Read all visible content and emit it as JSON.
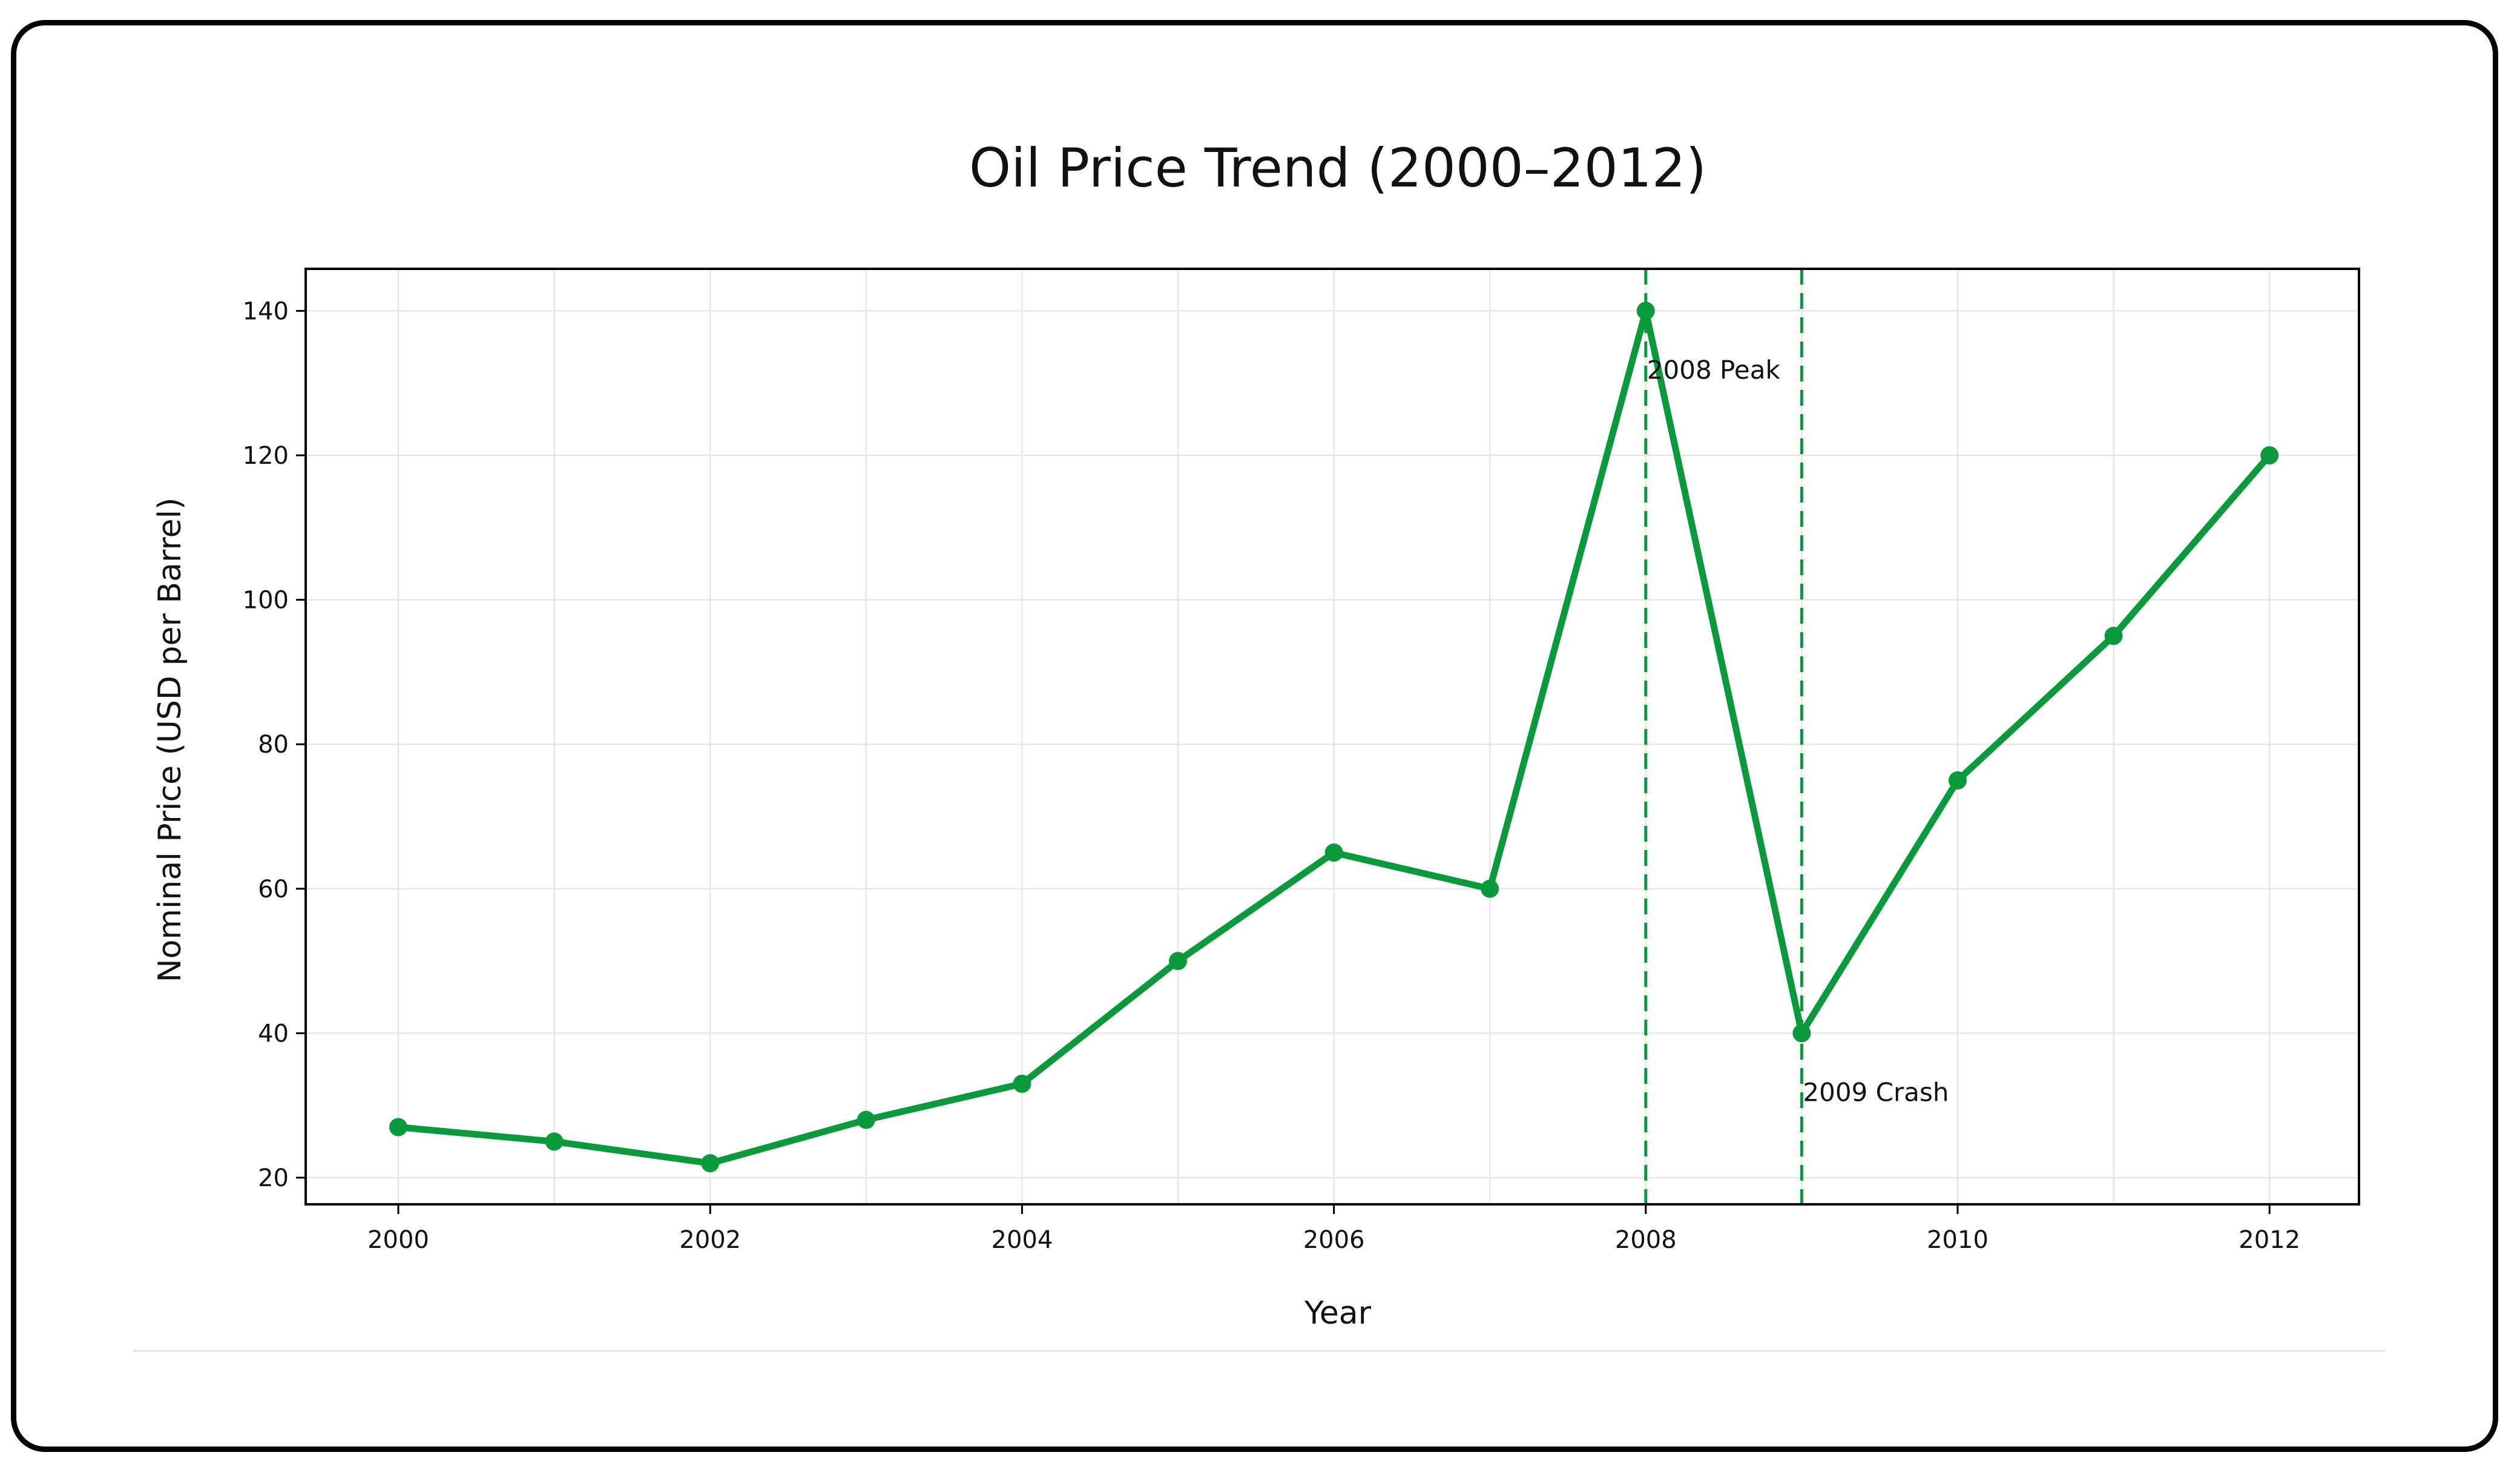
{
  "chart_data": {
    "type": "line",
    "title": "Oil Price Trend (2000–2012)",
    "xlabel": "Year",
    "ylabel": "Nominal Price (USD per Barrel)",
    "x": [
      2000,
      2001,
      2002,
      2003,
      2004,
      2005,
      2006,
      2007,
      2008,
      2009,
      2010,
      2011,
      2012
    ],
    "series": [
      {
        "name": "Oil Price",
        "color": "#0a9a3c",
        "marker": "circle",
        "values": [
          27,
          25,
          22,
          28,
          33,
          50,
          65,
          60,
          140,
          40,
          75,
          95,
          120
        ]
      }
    ],
    "xticks": [
      "2000",
      "2002",
      "2004",
      "2006",
      "2008",
      "2010",
      "2012"
    ],
    "yticks": [
      "20",
      "40",
      "60",
      "80",
      "100",
      "120",
      "140"
    ],
    "xlim": [
      1999.4,
      2012.6
    ],
    "ylim": [
      16,
      146
    ],
    "grid": true,
    "legend": null,
    "vlines": [
      {
        "x": 2008,
        "style": "dashed",
        "color": "#0a9a3c"
      },
      {
        "x": 2009,
        "style": "dashed",
        "color": "#0a9a3c"
      }
    ],
    "annotations": [
      {
        "text": "2008 Peak",
        "x": 2008,
        "y": 140
      },
      {
        "text": "2009 Crash",
        "x": 2009,
        "y": 40
      }
    ]
  }
}
